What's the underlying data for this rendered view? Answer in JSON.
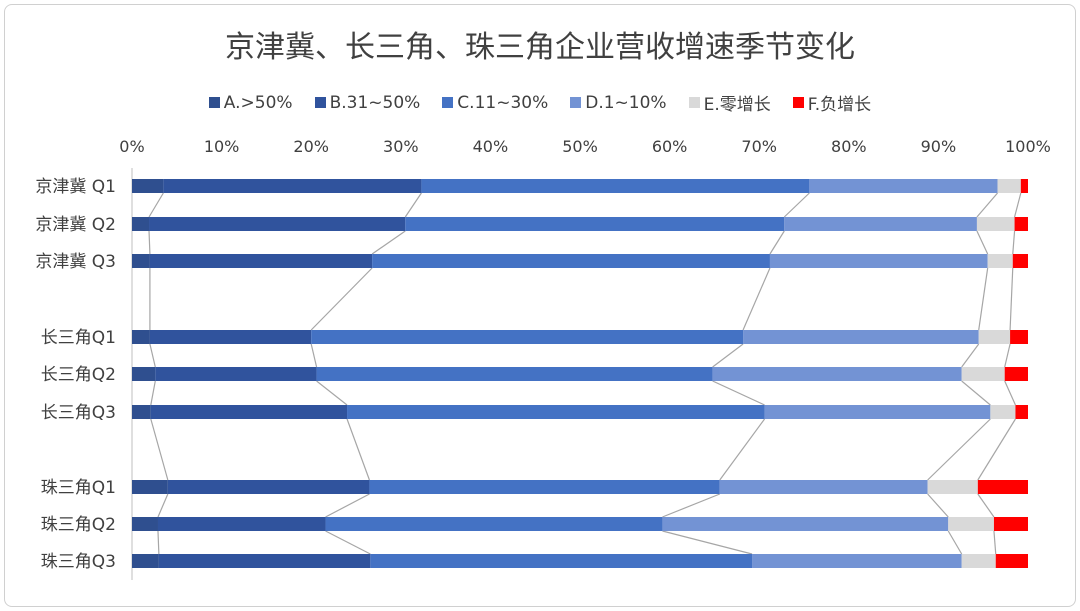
{
  "chart_data": {
    "type": "bar",
    "orientation": "horizontal",
    "stacked": "percent",
    "title": "京津冀、长三角、珠三角企业营收增速季节变化",
    "xlabel": "",
    "ylabel": "",
    "xlim": [
      0,
      100
    ],
    "x_ticks": [
      "0%",
      "10%",
      "20%",
      "30%",
      "40%",
      "50%",
      "60%",
      "70%",
      "80%",
      "90%",
      "100%"
    ],
    "legend_position": "top",
    "groups": [
      [
        "京津冀 Q1",
        "京津冀 Q2",
        "京津冀 Q3"
      ],
      [
        "长三角Q1",
        "长三角Q2",
        "长三角Q3"
      ],
      [
        "珠三角Q1",
        "珠三角Q2",
        "珠三角Q3"
      ]
    ],
    "categories": [
      "京津冀 Q1",
      "京津冀 Q2",
      "京津冀 Q3",
      "长三角Q1",
      "长三角Q2",
      "长三角Q3",
      "珠三角Q1",
      "珠三角Q2",
      "珠三角Q3"
    ],
    "series": [
      {
        "name": "A.>50%",
        "color": "#2f4f8f",
        "values": [
          3.5,
          1.9,
          2.0,
          2.0,
          2.6,
          2.1,
          4.0,
          2.9,
          3.0
        ]
      },
      {
        "name": "B.31~50%",
        "color": "#30539d",
        "values": [
          28.8,
          28.6,
          24.8,
          18.0,
          18.0,
          21.9,
          22.5,
          18.7,
          23.6
        ]
      },
      {
        "name": "C.11~30%",
        "color": "#4472c4",
        "values": [
          43.3,
          42.3,
          44.4,
          48.2,
          44.2,
          46.6,
          39.1,
          37.6,
          42.6
        ]
      },
      {
        "name": "D.1~10%",
        "color": "#7393d4",
        "values": [
          21.0,
          21.5,
          24.3,
          26.3,
          27.8,
          25.2,
          23.2,
          31.9,
          23.4
        ]
      },
      {
        "name": "E.零增长",
        "color": "#d9d9d9",
        "values": [
          2.6,
          4.2,
          2.8,
          3.5,
          4.8,
          2.8,
          5.6,
          5.1,
          3.8
        ]
      },
      {
        "name": "F.负增长",
        "color": "#ff0000",
        "values": [
          0.8,
          1.5,
          1.7,
          2.0,
          2.6,
          1.4,
          5.6,
          3.8,
          3.6
        ]
      }
    ]
  }
}
